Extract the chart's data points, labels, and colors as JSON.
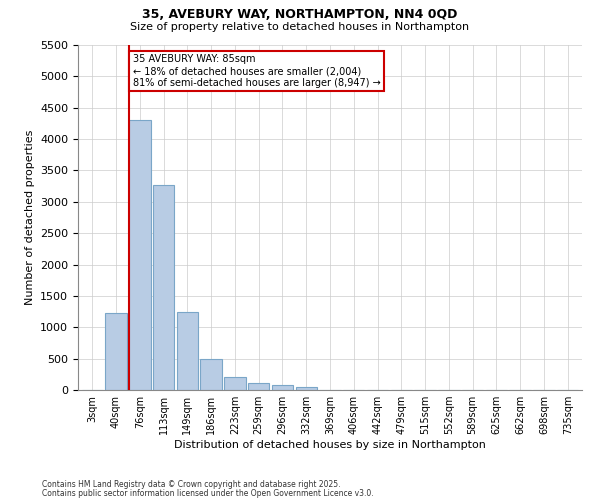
{
  "title1": "35, AVEBURY WAY, NORTHAMPTON, NN4 0QD",
  "title2": "Size of property relative to detached houses in Northampton",
  "xlabel": "Distribution of detached houses by size in Northampton",
  "ylabel": "Number of detached properties",
  "categories": [
    "3sqm",
    "40sqm",
    "76sqm",
    "113sqm",
    "149sqm",
    "186sqm",
    "223sqm",
    "259sqm",
    "296sqm",
    "332sqm",
    "369sqm",
    "406sqm",
    "442sqm",
    "479sqm",
    "515sqm",
    "552sqm",
    "589sqm",
    "625sqm",
    "662sqm",
    "698sqm",
    "735sqm"
  ],
  "values": [
    0,
    1220,
    4300,
    3270,
    1250,
    500,
    200,
    105,
    75,
    50,
    0,
    0,
    0,
    0,
    0,
    0,
    0,
    0,
    0,
    0,
    0
  ],
  "bar_color": "#b8cce4",
  "bar_edge_color": "#7aa6c8",
  "red_line_bin_index": 2,
  "red_line_label": "35 AVEBURY WAY: 85sqm",
  "annotation_smaller": "← 18% of detached houses are smaller (2,004)",
  "annotation_larger": "81% of semi-detached houses are larger (8,947) →",
  "ylim": [
    0,
    5500
  ],
  "yticks": [
    0,
    500,
    1000,
    1500,
    2000,
    2500,
    3000,
    3500,
    4000,
    4500,
    5000,
    5500
  ],
  "footnote1": "Contains HM Land Registry data © Crown copyright and database right 2025.",
  "footnote2": "Contains public sector information licensed under the Open Government Licence v3.0.",
  "box_color": "#cc0000",
  "background_color": "#ffffff",
  "grid_color": "#cccccc"
}
